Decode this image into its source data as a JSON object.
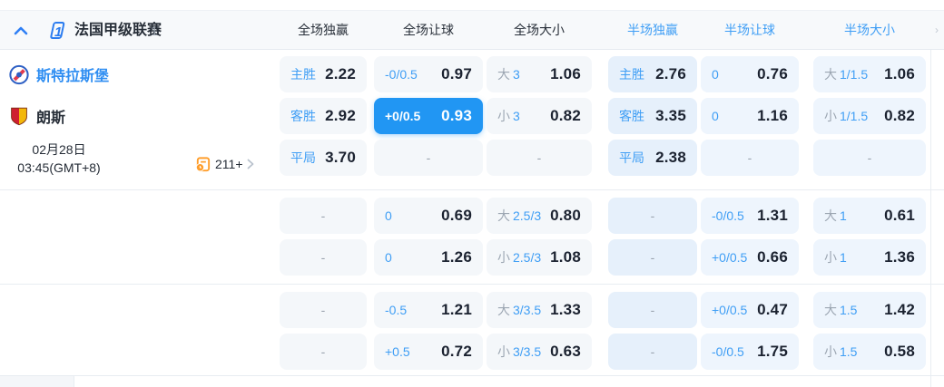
{
  "colors": {
    "accent_selected": "#2196f3",
    "label_blue": "#3f9ef5",
    "muted_gray": "#9ca6b2",
    "value_dark": "#1b2230",
    "home_team_blue": "#2f8ef2",
    "stats_icon_orange": "#ff9e2c"
  },
  "header": {
    "league": "法国甲级联赛",
    "league_count": "1",
    "columns": [
      {
        "label": "全场独赢",
        "group": "full"
      },
      {
        "label": "全场让球",
        "group": "full"
      },
      {
        "label": "全场大小",
        "group": "full"
      },
      {
        "label": "半场独赢",
        "group": "half"
      },
      {
        "label": "半场让球",
        "group": "half"
      },
      {
        "label": "半场大小",
        "group": "half"
      }
    ]
  },
  "match": {
    "home": "斯特拉斯堡",
    "away": "朗斯",
    "date": "02月28日",
    "time": "03:45(GMT+8)",
    "more_count": "211+"
  },
  "empty_placeholder": "-",
  "odds_rows": [
    {
      "cells": [
        {
          "label": "主胜",
          "value": "2.22"
        },
        {
          "label": "-0/0.5",
          "value": "0.97"
        },
        {
          "muted": "大",
          "label": "3",
          "value": "1.06"
        },
        {
          "label": "主胜",
          "value": "2.76"
        },
        {
          "label": "0",
          "value": "0.76"
        },
        {
          "muted": "大",
          "label": "1/1.5",
          "value": "1.06"
        }
      ]
    },
    {
      "cells": [
        {
          "label": "客胜",
          "value": "2.92"
        },
        {
          "label": "+0/0.5",
          "value": "0.93",
          "selected": true
        },
        {
          "muted": "小",
          "label": "3",
          "value": "0.82"
        },
        {
          "label": "客胜",
          "value": "3.35"
        },
        {
          "label": "0",
          "value": "1.16"
        },
        {
          "muted": "小",
          "label": "1/1.5",
          "value": "0.82"
        }
      ]
    },
    {
      "cells": [
        {
          "label": "平局",
          "value": "3.70"
        },
        {},
        {},
        {
          "label": "平局",
          "value": "2.38"
        },
        {},
        {}
      ]
    },
    {
      "cells": [
        {},
        {
          "label": "0",
          "value": "0.69"
        },
        {
          "muted": "大",
          "label": "2.5/3",
          "value": "0.80"
        },
        {},
        {
          "label": "-0/0.5",
          "value": "1.31"
        },
        {
          "muted": "大",
          "label": "1",
          "value": "0.61"
        }
      ]
    },
    {
      "cells": [
        {},
        {
          "label": "0",
          "value": "1.26"
        },
        {
          "muted": "小",
          "label": "2.5/3",
          "value": "1.08"
        },
        {},
        {
          "label": "+0/0.5",
          "value": "0.66"
        },
        {
          "muted": "小",
          "label": "1",
          "value": "1.36"
        }
      ]
    },
    {
      "cells": [
        {},
        {
          "label": "-0.5",
          "value": "1.21"
        },
        {
          "muted": "大",
          "label": "3/3.5",
          "value": "1.33"
        },
        {},
        {
          "label": "+0/0.5",
          "value": "0.47"
        },
        {
          "muted": "大",
          "label": "1.5",
          "value": "1.42"
        }
      ]
    },
    {
      "cells": [
        {},
        {
          "label": "+0.5",
          "value": "0.72"
        },
        {
          "muted": "小",
          "label": "3/3.5",
          "value": "0.63"
        },
        {},
        {
          "label": "-0/0.5",
          "value": "1.75"
        },
        {
          "muted": "小",
          "label": "1.5",
          "value": "0.58"
        }
      ]
    }
  ]
}
